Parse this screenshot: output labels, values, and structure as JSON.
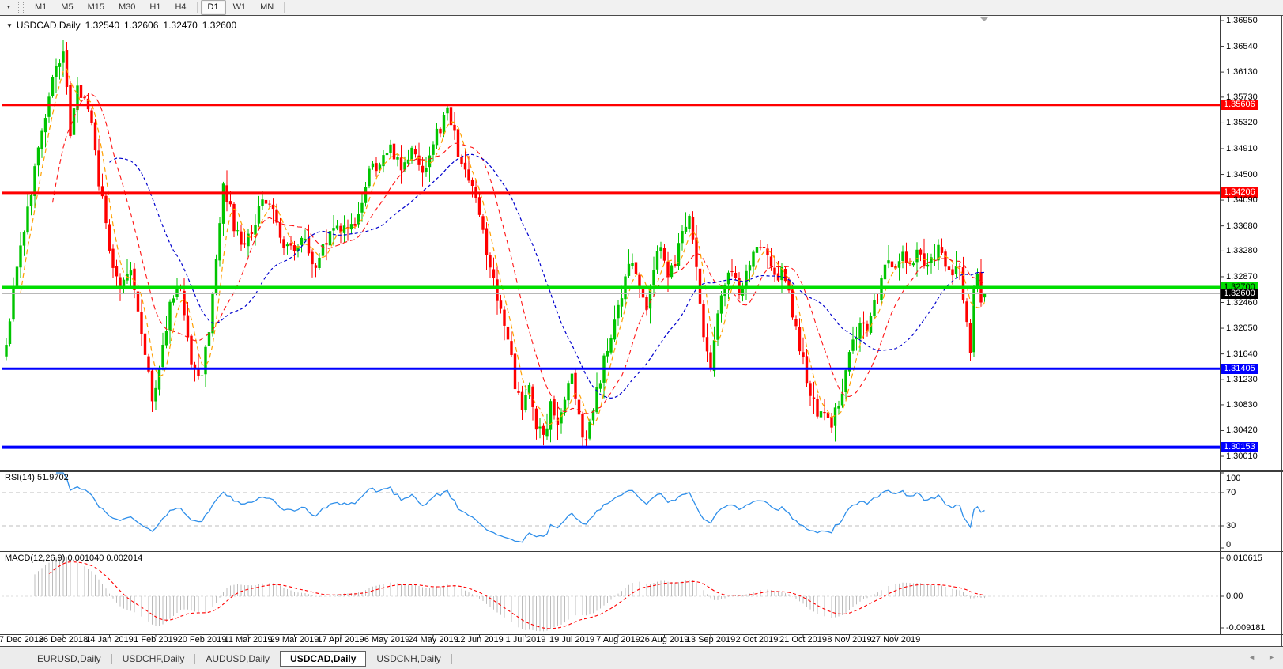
{
  "toolbar": {
    "dropdown_icon": "▼",
    "timeframes": [
      "M1",
      "M5",
      "M15",
      "M30",
      "H1",
      "H4",
      "D1",
      "W1",
      "MN"
    ],
    "active_timeframe": "D1"
  },
  "chart_header": {
    "collapse_icon": "▼",
    "symbol": "USDCAD,Daily",
    "open": "1.32540",
    "high": "1.32606",
    "low": "1.32470",
    "close": "1.32600"
  },
  "price_axis": {
    "ticks": [
      "1.36950",
      "1.36540",
      "1.36130",
      "1.35730",
      "1.35320",
      "1.34910",
      "1.34500",
      "1.34090",
      "1.33680",
      "1.33280",
      "1.32870",
      "1.32460",
      "1.32050",
      "1.31640",
      "1.31230",
      "1.30830",
      "1.30420",
      "1.30010"
    ],
    "tagged_levels": [
      {
        "value": "1.35606",
        "price": 1.35606,
        "bg": "#ff0000",
        "fg": "#ffffff",
        "line_color": "#ff0000",
        "line_width": 3
      },
      {
        "value": "1.34206",
        "price": 1.34206,
        "bg": "#ff0000",
        "fg": "#ffffff",
        "line_color": "#ff0000",
        "line_width": 3
      },
      {
        "value": "1.32700",
        "price": 1.327,
        "bg": "#00dd00",
        "fg": "#000000",
        "line_color": "#00dd00",
        "line_width": 4
      },
      {
        "value": "1.32600",
        "price": 1.326,
        "bg": "#000000",
        "fg": "#ffffff",
        "line_color": "#b6b6b6",
        "line_width": 1
      },
      {
        "value": "1.31405",
        "price": 1.31405,
        "bg": "#0000ff",
        "fg": "#ffffff",
        "line_color": "#0000ff",
        "line_width": 3
      },
      {
        "value": "1.30153",
        "price": 1.30153,
        "bg": "#0000ff",
        "fg": "#ffffff",
        "line_color": "#0000ff",
        "line_width": 4
      }
    ]
  },
  "rsi_panel": {
    "label": "RSI(14) 51.9702",
    "axis_labels": [
      "100",
      "70",
      "30",
      "0"
    ],
    "overbought": 70,
    "oversold": 30
  },
  "macd_panel": {
    "label": "MACD(12,26,9) 0.001040 0.002014",
    "axis_top": "0.010615",
    "axis_zero": "0.00",
    "axis_bottom": "-0.009181"
  },
  "date_axis": {
    "labels": [
      "7 Dec 2018",
      "26 Dec 2018",
      "14 Jan 2019",
      "1 Feb 2019",
      "20 Feb 2019",
      "11 Mar 2019",
      "29 Mar 2019",
      "17 Apr 2019",
      "6 May 2019",
      "24 May 2019",
      "12 Jun 2019",
      "1 Jul 2019",
      "19 Jul 2019",
      "7 Aug 2019",
      "26 Aug 2019",
      "13 Sep 2019",
      "2 Oct 2019",
      "21 Oct 2019",
      "8 Nov 2019",
      "27 Nov 2019"
    ]
  },
  "tabs": {
    "items": [
      {
        "label": "EURUSD,Daily",
        "active": false
      },
      {
        "label": "USDCHF,Daily",
        "active": false
      },
      {
        "label": "AUDUSD,Daily",
        "active": false
      },
      {
        "label": "USDCAD,Daily",
        "active": true
      },
      {
        "label": "USDCNH,Daily",
        "active": false
      }
    ],
    "scroll_left_icon": "◄",
    "scroll_right_icon": "►"
  },
  "colors": {
    "bull_candle": "#00c400",
    "bear_candle": "#ff0000",
    "ma_fast": "#ffa000",
    "ma_medium": "#ff1414",
    "ma_slow": "#0000cd",
    "rsi_line": "#2f8fea",
    "macd_histogram": "#bcbcbc",
    "dashed_level": "#bdbdbd",
    "current_price_line": "#b6b6b6",
    "shift_marker": "#a8a8a8"
  },
  "chart_data": {
    "type": "candlestick+indicators",
    "symbol": "USDCAD",
    "timeframe": "Daily",
    "last_ohlc": {
      "open": 1.3254,
      "high": 1.32606,
      "low": 1.3247,
      "close": 1.326
    },
    "y_axis_ticks": [
      1.3695,
      1.3654,
      1.3613,
      1.3573,
      1.3532,
      1.3491,
      1.345,
      1.3409,
      1.3368,
      1.3328,
      1.3287,
      1.3246,
      1.3205,
      1.3164,
      1.3123,
      1.3083,
      1.3042,
      1.3001
    ],
    "horizontal_levels": [
      1.35606,
      1.34206,
      1.327,
      1.31405,
      1.30153
    ],
    "current_price": 1.326,
    "bars": 276,
    "moving_averages": [
      {
        "period": 5,
        "color": "#ffa000",
        "style": "dashed"
      },
      {
        "period": 14,
        "color": "#ff1414",
        "style": "dashed"
      },
      {
        "period": 30,
        "color": "#0000cd",
        "style": "dashed"
      }
    ],
    "rsi": {
      "period": 14,
      "current": 51.9702,
      "overbought": 70,
      "oversold": 30,
      "range": [
        0,
        100
      ]
    },
    "macd": {
      "fast": 12,
      "slow": 26,
      "signal": 9,
      "current_main": 0.00104,
      "current_signal": 0.002014,
      "scale_max": 0.010615,
      "scale_min": -0.009181
    },
    "price_path": [
      [
        0,
        1.3185
      ],
      [
        3,
        1.331
      ],
      [
        6,
        1.34
      ],
      [
        9,
        1.348
      ],
      [
        12,
        1.357
      ],
      [
        14,
        1.362
      ],
      [
        16,
        1.3655
      ],
      [
        18,
        1.35
      ],
      [
        20,
        1.359
      ],
      [
        23,
        1.356
      ],
      [
        26,
        1.344
      ],
      [
        29,
        1.334
      ],
      [
        32,
        1.326
      ],
      [
        35,
        1.33
      ],
      [
        38,
        1.319
      ],
      [
        41,
        1.309
      ],
      [
        43,
        1.315
      ],
      [
        46,
        1.324
      ],
      [
        49,
        1.327
      ],
      [
        52,
        1.316
      ],
      [
        55,
        1.312
      ],
      [
        58,
        1.325
      ],
      [
        61,
        1.344
      ],
      [
        63,
        1.339
      ],
      [
        66,
        1.333
      ],
      [
        69,
        1.336
      ],
      [
        72,
        1.342
      ],
      [
        75,
        1.339
      ],
      [
        78,
        1.334
      ],
      [
        81,
        1.332
      ],
      [
        84,
        1.335
      ],
      [
        87,
        1.33
      ],
      [
        90,
        1.334
      ],
      [
        93,
        1.338
      ],
      [
        96,
        1.335
      ],
      [
        99,
        1.339
      ],
      [
        102,
        1.345
      ],
      [
        105,
        1.347
      ],
      [
        108,
        1.35
      ],
      [
        111,
        1.346
      ],
      [
        114,
        1.349
      ],
      [
        117,
        1.345
      ],
      [
        120,
        1.35
      ],
      [
        124,
        1.3545
      ],
      [
        127,
        1.349
      ],
      [
        130,
        1.344
      ],
      [
        133,
        1.338
      ],
      [
        136,
        1.33
      ],
      [
        139,
        1.324
      ],
      [
        141,
        1.318
      ],
      [
        143,
        1.312
      ],
      [
        145,
        1.308
      ],
      [
        147,
        1.311
      ],
      [
        149,
        1.305
      ],
      [
        151,
        1.3035
      ],
      [
        153,
        1.308
      ],
      [
        155,
        1.304
      ],
      [
        157,
        1.309
      ],
      [
        159,
        1.312
      ],
      [
        161,
        1.306
      ],
      [
        163,
        1.3025
      ],
      [
        165,
        1.308
      ],
      [
        167,
        1.313
      ],
      [
        169,
        1.317
      ],
      [
        172,
        1.324
      ],
      [
        174,
        1.329
      ],
      [
        176,
        1.332
      ],
      [
        178,
        1.328
      ],
      [
        180,
        1.324
      ],
      [
        182,
        1.33
      ],
      [
        184,
        1.333
      ],
      [
        186,
        1.329
      ],
      [
        188,
        1.331
      ],
      [
        190,
        1.335
      ],
      [
        192,
        1.338
      ],
      [
        194,
        1.33
      ],
      [
        196,
        1.32
      ],
      [
        198,
        1.315
      ],
      [
        200,
        1.323
      ],
      [
        202,
        1.327
      ],
      [
        204,
        1.33
      ],
      [
        206,
        1.326
      ],
      [
        208,
        1.329
      ],
      [
        210,
        1.332
      ],
      [
        212,
        1.334
      ],
      [
        214,
        1.331
      ],
      [
        216,
        1.328
      ],
      [
        218,
        1.33
      ],
      [
        220,
        1.326
      ],
      [
        222,
        1.321
      ],
      [
        224,
        1.315
      ],
      [
        226,
        1.31
      ],
      [
        228,
        1.306
      ],
      [
        230,
        1.308
      ],
      [
        232,
        1.3045
      ],
      [
        234,
        1.309
      ],
      [
        236,
        1.313
      ],
      [
        238,
        1.318
      ],
      [
        240,
        1.322
      ],
      [
        242,
        1.319
      ],
      [
        244,
        1.324
      ],
      [
        246,
        1.328
      ],
      [
        248,
        1.331
      ],
      [
        250,
        1.329
      ],
      [
        252,
        1.332
      ],
      [
        254,
        1.33
      ],
      [
        256,
        1.333
      ],
      [
        258,
        1.331
      ],
      [
        260,
        1.332
      ],
      [
        262,
        1.333
      ],
      [
        264,
        1.331
      ],
      [
        266,
        1.33
      ],
      [
        268,
        1.329
      ],
      [
        270,
        1.3215
      ],
      [
        271,
        1.3165
      ],
      [
        272,
        1.3268
      ],
      [
        273,
        1.3292
      ],
      [
        274,
        1.3246
      ],
      [
        275,
        1.326
      ]
    ]
  }
}
